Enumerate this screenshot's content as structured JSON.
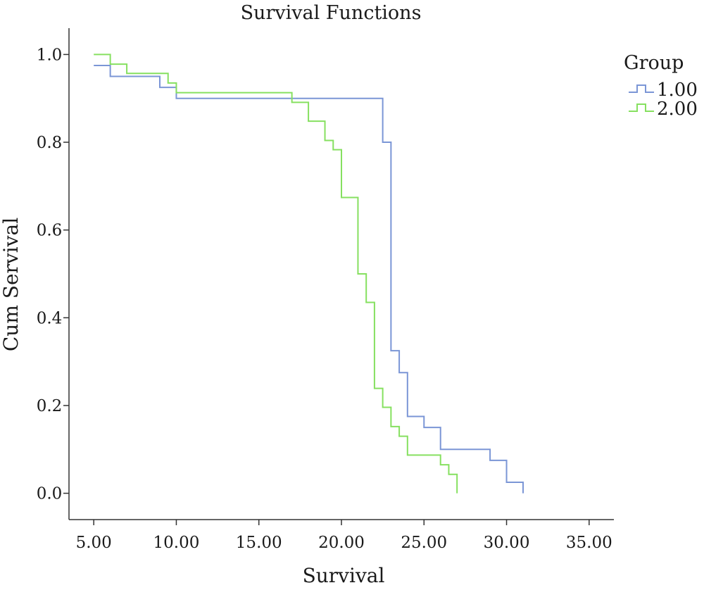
{
  "chart_data": {
    "type": "line",
    "step": true,
    "title": "Survival Functions",
    "xlabel": "Survival",
    "ylabel": "Cum Servival",
    "xlim": [
      3.5,
      36.5
    ],
    "ylim": [
      -0.06,
      1.06
    ],
    "xticks": [
      5,
      10,
      15,
      20,
      25,
      30,
      35
    ],
    "xtick_labels": [
      "5.00",
      "10.00",
      "15.00",
      "20.00",
      "25.00",
      "30.00",
      "35.00"
    ],
    "yticks": [
      0,
      0.2,
      0.4,
      0.6,
      0.8,
      1.0
    ],
    "ytick_labels": [
      "0.0",
      "0.2",
      "0.4",
      "0.6",
      "0.8",
      "1.0"
    ],
    "grid": false,
    "legend": {
      "title": "Group",
      "position": "top-right"
    },
    "series": [
      {
        "name": "1.00",
        "color": "#7b96d6",
        "x": [
          5,
          6,
          9,
          10,
          22.5,
          23,
          23.5,
          24,
          25,
          26,
          29,
          30,
          31
        ],
        "y": [
          0.975,
          0.95,
          0.925,
          0.9,
          0.8,
          0.325,
          0.275,
          0.175,
          0.15,
          0.1,
          0.075,
          0.025,
          0.0
        ]
      },
      {
        "name": "2.00",
        "color": "#86e060",
        "x": [
          5,
          6,
          7,
          9.5,
          10,
          17,
          18,
          19,
          19.5,
          20,
          21,
          21.5,
          22,
          22.5,
          23,
          23.5,
          24,
          26,
          26.5,
          27
        ],
        "y": [
          1.0,
          0.978,
          0.957,
          0.935,
          0.913,
          0.891,
          0.848,
          0.804,
          0.783,
          0.674,
          0.5,
          0.435,
          0.239,
          0.196,
          0.152,
          0.13,
          0.087,
          0.065,
          0.043,
          0.0
        ]
      }
    ]
  }
}
